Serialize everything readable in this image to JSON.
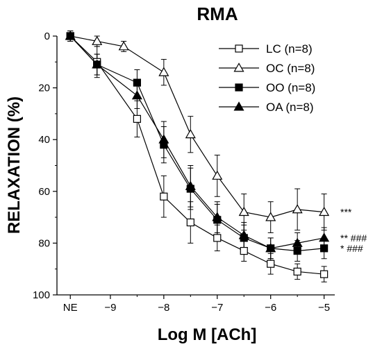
{
  "chart_data": {
    "type": "line",
    "title": "RMA",
    "xlabel": "Log M [ACh]",
    "ylabel": "RELAXATION (%)",
    "x_tick_labels": [
      "NE",
      "−9",
      "−8",
      "−7",
      "−6",
      "−5"
    ],
    "x_tick_values": [
      -9.75,
      -9,
      -8,
      -7,
      -6,
      -5
    ],
    "y_tick_values": [
      0,
      20,
      40,
      60,
      80,
      100
    ],
    "y_tick_labels": [
      "0",
      "20",
      "40",
      "60",
      "80",
      "100"
    ],
    "ylim": [
      0,
      100
    ],
    "y_inverted": true,
    "xlim": [
      -10,
      -4.8
    ],
    "legend_position": "top-right",
    "x": [
      -9.75,
      -9.5,
      -9,
      -8.5,
      -8,
      -7.5,
      -7,
      -6.5,
      -6,
      -5.5,
      -5
    ],
    "series": [
      {
        "name": "LC (n=8)",
        "marker": "square-open",
        "values": [
          0,
          10,
          32,
          62,
          72,
          78,
          83,
          88,
          91,
          92
        ],
        "x": [
          -9.75,
          -9.25,
          -8.5,
          -8,
          -7.5,
          -7,
          -6.5,
          -6,
          -5.5,
          -5
        ],
        "errors": [
          2,
          6,
          7,
          8,
          8,
          5,
          4,
          4,
          3,
          3
        ]
      },
      {
        "name": "OC (n=8)",
        "marker": "triangle-open",
        "values": [
          0,
          2,
          4,
          14,
          38,
          54,
          68,
          70,
          67,
          68
        ],
        "x": [
          -9.75,
          -9.25,
          -8.75,
          -8,
          -7.5,
          -7,
          -6.5,
          -6,
          -5.5,
          -5
        ],
        "errors": [
          1,
          2,
          2,
          5,
          7,
          8,
          7,
          6,
          8,
          7
        ]
      },
      {
        "name": "OO (n=8)",
        "marker": "square-filled",
        "values": [
          0,
          11,
          18,
          42,
          59,
          71,
          78,
          82,
          83,
          82
        ],
        "x": [
          -9.75,
          -9.25,
          -8.5,
          -8,
          -7.5,
          -7,
          -6.5,
          -6,
          -5.5,
          -5
        ],
        "errors": [
          2,
          4,
          5,
          7,
          8,
          6,
          5,
          4,
          4,
          4
        ]
      },
      {
        "name": "OA (n=8)",
        "marker": "triangle-filled",
        "values": [
          0,
          11,
          23,
          40,
          58,
          70,
          77,
          82,
          80,
          78
        ],
        "x": [
          -9.75,
          -9.25,
          -8.5,
          -8,
          -7.5,
          -7,
          -6.5,
          -6,
          -5.5,
          -5
        ],
        "errors": [
          2,
          4,
          5,
          7,
          8,
          6,
          5,
          4,
          4,
          4
        ]
      }
    ],
    "annotations": [
      {
        "text": "***",
        "y": 68
      },
      {
        "text": "** ###",
        "y": 78
      },
      {
        "text": "*   ###",
        "y": 82
      }
    ]
  }
}
